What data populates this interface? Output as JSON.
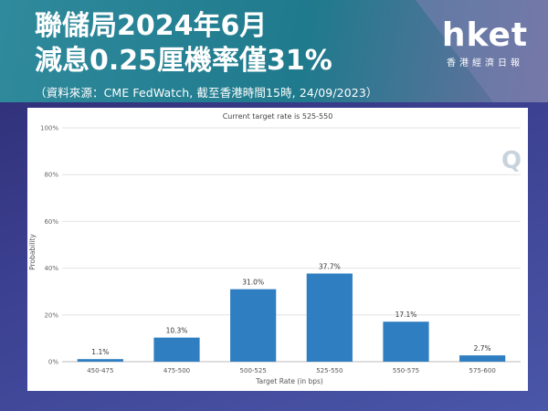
{
  "headline": {
    "line1": "聯儲局2024年6月",
    "line2": "減息0.25厘機率僅31%",
    "source": "（資料來源：CME FedWatch, 截至香港時間15時, 24/09/2023）"
  },
  "logo": {
    "main": "hket",
    "sub": "香港經濟日報"
  },
  "chart_data": {
    "type": "bar",
    "title": "Current target rate is 525-550",
    "xlabel": "Target Rate (in bps)",
    "ylabel": "Probability",
    "categories": [
      "450-475",
      "475-500",
      "500-525",
      "525-550",
      "550-575",
      "575-600"
    ],
    "values": [
      1.1,
      10.3,
      31.0,
      37.7,
      17.1,
      2.7
    ],
    "value_labels": [
      "1.1%",
      "10.3%",
      "31.0%",
      "37.7%",
      "17.1%",
      "2.7%"
    ],
    "ylim": [
      0,
      100
    ],
    "yticks": [
      0,
      20,
      40,
      60,
      80,
      100
    ],
    "ytick_labels": [
      "0%",
      "20%",
      "40%",
      "60%",
      "80%",
      "100%"
    ],
    "grid": true,
    "bar_color": "#2f7ec1",
    "watermark": "Q"
  }
}
